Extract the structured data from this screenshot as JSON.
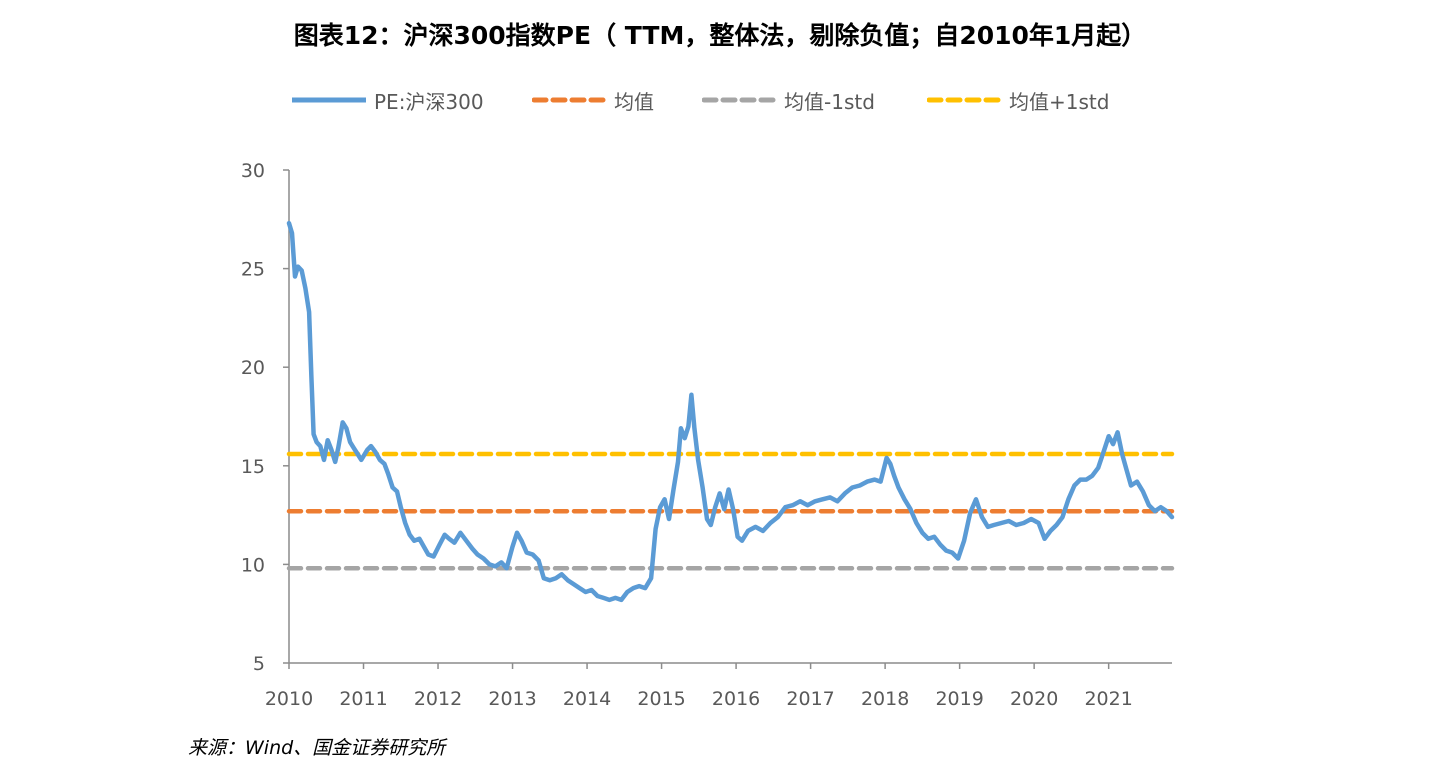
{
  "chart_data": {
    "type": "line",
    "title": "图表12：沪深300指数PE（ TTM，整体法，剔除负值；自2010年1月起）",
    "xlabel": "",
    "ylabel": "",
    "ylim": [
      5,
      30
    ],
    "yticks": [
      "5",
      "10",
      "15",
      "20",
      "25",
      "30"
    ],
    "xlim": [
      2010,
      2021.85
    ],
    "xticks": [
      "2010",
      "2011",
      "2012",
      "2013",
      "2014",
      "2015",
      "2016",
      "2017",
      "2018",
      "2019",
      "2020",
      "2021"
    ],
    "grid": false,
    "legend_position": "top",
    "series": [
      {
        "name": "PE:沪深300",
        "color": "#5b9bd5",
        "style": "solid",
        "points": [
          [
            2010.0,
            27.3
          ],
          [
            2010.04,
            26.8
          ],
          [
            2010.08,
            24.6
          ],
          [
            2010.12,
            25.1
          ],
          [
            2010.17,
            24.9
          ],
          [
            2010.22,
            24.0
          ],
          [
            2010.27,
            22.8
          ],
          [
            2010.3,
            19.5
          ],
          [
            2010.33,
            16.6
          ],
          [
            2010.37,
            16.2
          ],
          [
            2010.42,
            16.0
          ],
          [
            2010.47,
            15.3
          ],
          [
            2010.52,
            16.3
          ],
          [
            2010.57,
            15.8
          ],
          [
            2010.62,
            15.2
          ],
          [
            2010.66,
            15.9
          ],
          [
            2010.72,
            17.2
          ],
          [
            2010.77,
            16.9
          ],
          [
            2010.82,
            16.2
          ],
          [
            2010.87,
            15.9
          ],
          [
            2010.92,
            15.6
          ],
          [
            2010.97,
            15.3
          ],
          [
            2011.05,
            15.8
          ],
          [
            2011.1,
            16.0
          ],
          [
            2011.16,
            15.7
          ],
          [
            2011.22,
            15.3
          ],
          [
            2011.28,
            15.1
          ],
          [
            2011.33,
            14.6
          ],
          [
            2011.39,
            13.9
          ],
          [
            2011.45,
            13.7
          ],
          [
            2011.5,
            12.9
          ],
          [
            2011.56,
            12.1
          ],
          [
            2011.62,
            11.5
          ],
          [
            2011.68,
            11.2
          ],
          [
            2011.75,
            11.3
          ],
          [
            2011.81,
            10.9
          ],
          [
            2011.87,
            10.5
          ],
          [
            2011.94,
            10.4
          ],
          [
            2012.02,
            11.0
          ],
          [
            2012.09,
            11.5
          ],
          [
            2012.15,
            11.3
          ],
          [
            2012.22,
            11.1
          ],
          [
            2012.3,
            11.6
          ],
          [
            2012.38,
            11.2
          ],
          [
            2012.46,
            10.8
          ],
          [
            2012.53,
            10.5
          ],
          [
            2012.61,
            10.3
          ],
          [
            2012.69,
            10.0
          ],
          [
            2012.77,
            9.9
          ],
          [
            2012.85,
            10.1
          ],
          [
            2012.92,
            9.8
          ],
          [
            2013.0,
            10.9
          ],
          [
            2013.06,
            11.6
          ],
          [
            2013.12,
            11.2
          ],
          [
            2013.19,
            10.6
          ],
          [
            2013.27,
            10.5
          ],
          [
            2013.35,
            10.2
          ],
          [
            2013.42,
            9.3
          ],
          [
            2013.5,
            9.2
          ],
          [
            2013.58,
            9.3
          ],
          [
            2013.66,
            9.5
          ],
          [
            2013.74,
            9.2
          ],
          [
            2013.82,
            9.0
          ],
          [
            2013.9,
            8.8
          ],
          [
            2013.98,
            8.6
          ],
          [
            2014.06,
            8.7
          ],
          [
            2014.14,
            8.4
          ],
          [
            2014.22,
            8.3
          ],
          [
            2014.3,
            8.2
          ],
          [
            2014.38,
            8.3
          ],
          [
            2014.46,
            8.2
          ],
          [
            2014.54,
            8.6
          ],
          [
            2014.62,
            8.8
          ],
          [
            2014.7,
            8.9
          ],
          [
            2014.78,
            8.8
          ],
          [
            2014.86,
            9.3
          ],
          [
            2014.92,
            11.8
          ],
          [
            2014.98,
            12.9
          ],
          [
            2015.04,
            13.3
          ],
          [
            2015.1,
            12.3
          ],
          [
            2015.16,
            13.8
          ],
          [
            2015.22,
            15.2
          ],
          [
            2015.26,
            16.9
          ],
          [
            2015.31,
            16.4
          ],
          [
            2015.36,
            17.0
          ],
          [
            2015.4,
            18.6
          ],
          [
            2015.44,
            16.9
          ],
          [
            2015.49,
            15.3
          ],
          [
            2015.55,
            13.9
          ],
          [
            2015.61,
            12.3
          ],
          [
            2015.66,
            12.0
          ],
          [
            2015.72,
            12.9
          ],
          [
            2015.78,
            13.6
          ],
          [
            2015.84,
            12.8
          ],
          [
            2015.9,
            13.8
          ],
          [
            2015.96,
            12.8
          ],
          [
            2016.02,
            11.4
          ],
          [
            2016.08,
            11.2
          ],
          [
            2016.16,
            11.7
          ],
          [
            2016.26,
            11.9
          ],
          [
            2016.36,
            11.7
          ],
          [
            2016.46,
            12.1
          ],
          [
            2016.56,
            12.4
          ],
          [
            2016.66,
            12.9
          ],
          [
            2016.76,
            13.0
          ],
          [
            2016.86,
            13.2
          ],
          [
            2016.96,
            13.0
          ],
          [
            2017.06,
            13.2
          ],
          [
            2017.16,
            13.3
          ],
          [
            2017.26,
            13.4
          ],
          [
            2017.36,
            13.2
          ],
          [
            2017.46,
            13.6
          ],
          [
            2017.56,
            13.9
          ],
          [
            2017.66,
            14.0
          ],
          [
            2017.76,
            14.2
          ],
          [
            2017.86,
            14.3
          ],
          [
            2017.94,
            14.2
          ],
          [
            2018.02,
            15.4
          ],
          [
            2018.07,
            15.1
          ],
          [
            2018.12,
            14.5
          ],
          [
            2018.18,
            13.9
          ],
          [
            2018.26,
            13.3
          ],
          [
            2018.34,
            12.8
          ],
          [
            2018.42,
            12.1
          ],
          [
            2018.5,
            11.6
          ],
          [
            2018.58,
            11.3
          ],
          [
            2018.66,
            11.4
          ],
          [
            2018.74,
            11.0
          ],
          [
            2018.82,
            10.7
          ],
          [
            2018.9,
            10.6
          ],
          [
            2018.98,
            10.3
          ],
          [
            2019.06,
            11.2
          ],
          [
            2019.14,
            12.6
          ],
          [
            2019.22,
            13.3
          ],
          [
            2019.3,
            12.4
          ],
          [
            2019.38,
            11.9
          ],
          [
            2019.46,
            12.0
          ],
          [
            2019.56,
            12.1
          ],
          [
            2019.66,
            12.2
          ],
          [
            2019.76,
            12.0
          ],
          [
            2019.86,
            12.1
          ],
          [
            2019.96,
            12.3
          ],
          [
            2020.06,
            12.1
          ],
          [
            2020.14,
            11.3
          ],
          [
            2020.22,
            11.7
          ],
          [
            2020.3,
            12.0
          ],
          [
            2020.38,
            12.4
          ],
          [
            2020.46,
            13.3
          ],
          [
            2020.54,
            14.0
          ],
          [
            2020.62,
            14.3
          ],
          [
            2020.7,
            14.3
          ],
          [
            2020.78,
            14.5
          ],
          [
            2020.86,
            14.9
          ],
          [
            2020.94,
            15.8
          ],
          [
            2021.0,
            16.5
          ],
          [
            2021.06,
            16.1
          ],
          [
            2021.12,
            16.7
          ],
          [
            2021.18,
            15.6
          ],
          [
            2021.24,
            14.8
          ],
          [
            2021.3,
            14.0
          ],
          [
            2021.38,
            14.2
          ],
          [
            2021.46,
            13.7
          ],
          [
            2021.54,
            13.0
          ],
          [
            2021.62,
            12.7
          ],
          [
            2021.7,
            12.9
          ],
          [
            2021.78,
            12.7
          ],
          [
            2021.85,
            12.4
          ]
        ]
      },
      {
        "name": "均值",
        "color": "#ed7d31",
        "style": "dashed",
        "points": [
          [
            2010.0,
            12.7
          ],
          [
            2021.85,
            12.7
          ]
        ]
      },
      {
        "name": "均值-1std",
        "color": "#a5a5a5",
        "style": "dashed",
        "points": [
          [
            2010.0,
            9.8
          ],
          [
            2021.85,
            9.8
          ]
        ]
      },
      {
        "name": "均值+1std",
        "color": "#ffc000",
        "style": "dashed",
        "points": [
          [
            2010.0,
            15.6
          ],
          [
            2021.85,
            15.6
          ]
        ]
      }
    ]
  },
  "source": "来源：Wind、国金证券研究所"
}
